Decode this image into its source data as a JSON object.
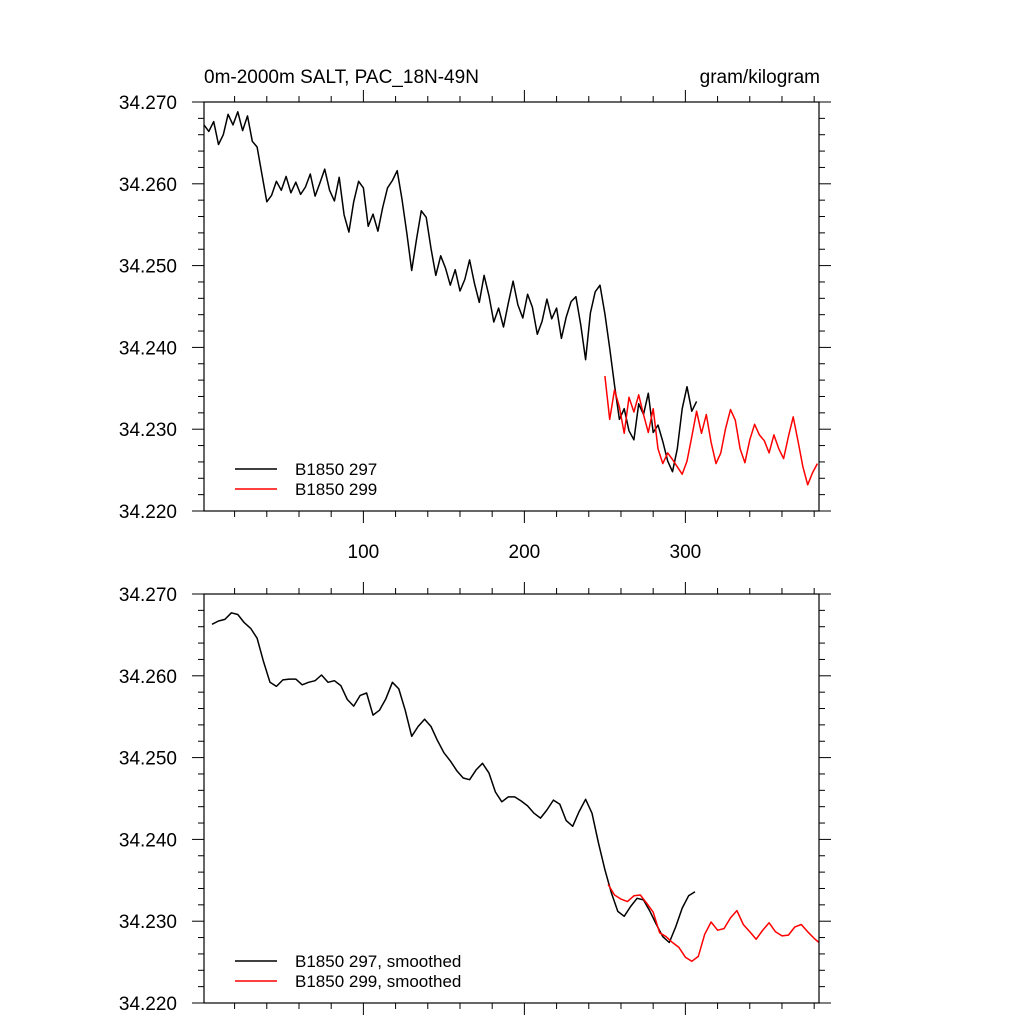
{
  "chart_data": [
    {
      "type": "line",
      "title": "0m-2000m SALT, PAC_18N-49N",
      "units_label": "gram/kilogram",
      "xlim": [
        1,
        383
      ],
      "ylim": [
        34.22,
        34.27
      ],
      "x_tick_labels": [
        "100",
        "200",
        "300"
      ],
      "x_ticks": [
        100,
        200,
        300
      ],
      "y_ticks": [
        34.22,
        34.23,
        34.24,
        34.25,
        34.26,
        34.27
      ],
      "y_tick_labels": [
        "34.220",
        "34.230",
        "34.240",
        "34.250",
        "34.260",
        "34.270"
      ],
      "legend": "bottom-left",
      "series": [
        {
          "name": "B1850 297",
          "color": "#000000",
          "x": [
            1,
            4,
            7,
            10,
            13,
            16,
            19,
            22,
            25,
            28,
            31,
            34,
            37,
            40,
            43,
            46,
            49,
            52,
            55,
            58,
            61,
            64,
            67,
            70,
            73,
            76,
            79,
            82,
            85,
            88,
            91,
            94,
            97,
            100,
            103,
            106,
            109,
            112,
            115,
            118,
            121,
            124,
            127,
            130,
            133,
            136,
            139,
            142,
            145,
            148,
            151,
            154,
            157,
            160,
            163,
            166,
            169,
            172,
            175,
            178,
            181,
            184,
            187,
            190,
            193,
            196,
            199,
            202,
            205,
            208,
            211,
            214,
            217,
            220,
            223,
            226,
            229,
            232,
            235,
            238,
            241,
            244,
            247,
            250,
            253,
            256,
            259,
            262,
            265,
            268,
            271,
            274,
            277,
            280,
            283,
            286,
            289,
            292,
            295,
            298,
            301,
            304,
            307
          ],
          "values": [
            34.2672,
            34.2664,
            34.2676,
            34.2648,
            34.266,
            34.2685,
            34.2672,
            34.2688,
            34.2665,
            34.2683,
            34.2652,
            34.2645,
            34.2611,
            34.2578,
            34.2586,
            34.2603,
            34.2592,
            34.2609,
            34.2589,
            34.2602,
            34.2587,
            34.2596,
            34.2612,
            34.2585,
            34.2601,
            34.2618,
            34.2592,
            34.2579,
            34.2608,
            34.2562,
            34.2541,
            34.2578,
            34.2603,
            34.2595,
            34.2548,
            34.2563,
            34.2542,
            34.2571,
            34.2595,
            34.2604,
            34.2616,
            34.2581,
            34.2539,
            34.2494,
            34.2532,
            34.2567,
            34.2559,
            34.2521,
            34.2488,
            34.2512,
            34.2497,
            34.2476,
            34.2495,
            34.2469,
            34.2483,
            34.2507,
            34.2478,
            34.2455,
            34.2488,
            34.2463,
            34.2431,
            34.2448,
            34.2425,
            34.2454,
            34.2481,
            34.2452,
            34.2436,
            34.2465,
            34.2449,
            34.2416,
            34.2432,
            34.2459,
            34.2435,
            34.2448,
            34.2411,
            34.2437,
            34.2456,
            34.2462,
            34.2428,
            34.2385,
            34.2442,
            34.2468,
            34.2476,
            34.2441,
            34.2399,
            34.2354,
            34.2312,
            34.2325,
            34.2298,
            34.2287,
            34.2331,
            34.2318,
            34.2344,
            34.2296,
            34.2305,
            34.2285,
            34.2261,
            34.2248,
            34.2276,
            34.2325,
            34.2352,
            34.2322,
            34.2334
          ]
        },
        {
          "name": "B1850 299",
          "color": "#ff0000",
          "x": [
            250,
            253,
            256,
            259,
            262,
            265,
            268,
            271,
            274,
            277,
            280,
            283,
            286,
            289,
            292,
            295,
            298,
            301,
            304,
            307,
            310,
            313,
            316,
            319,
            322,
            325,
            328,
            331,
            334,
            337,
            340,
            343,
            346,
            349,
            352,
            355,
            358,
            361,
            364,
            367,
            370,
            373,
            376,
            379,
            382
          ],
          "values": [
            34.2365,
            34.2312,
            34.2348,
            34.2327,
            34.2295,
            34.2339,
            34.2321,
            34.2342,
            34.2318,
            34.2296,
            34.2325,
            34.2276,
            34.2258,
            34.2271,
            34.2263,
            34.2254,
            34.2245,
            34.2261,
            34.2291,
            34.2322,
            34.2295,
            34.2318,
            34.2284,
            34.2258,
            34.2271,
            34.2301,
            34.2324,
            34.2311,
            34.2276,
            34.2259,
            34.2287,
            34.2306,
            34.2293,
            34.2286,
            34.2271,
            34.2293,
            34.2276,
            34.2264,
            34.2291,
            34.2315,
            34.2285,
            34.2254,
            34.2232,
            34.2247,
            34.2258
          ]
        }
      ]
    },
    {
      "type": "line",
      "xlim": [
        1,
        383
      ],
      "ylim": [
        34.22,
        34.27
      ],
      "x_ticks": [
        100,
        200,
        300
      ],
      "y_ticks": [
        34.22,
        34.23,
        34.24,
        34.25,
        34.26,
        34.27
      ],
      "y_tick_labels": [
        "34.220",
        "34.230",
        "34.240",
        "34.250",
        "34.260",
        "34.270"
      ],
      "legend": "bottom-left",
      "series": [
        {
          "name": "B1850 297, smoothed",
          "color": "#000000",
          "x": [
            6,
            10,
            14,
            18,
            22,
            26,
            30,
            34,
            38,
            42,
            46,
            50,
            54,
            58,
            62,
            66,
            70,
            74,
            78,
            82,
            86,
            90,
            94,
            98,
            102,
            106,
            110,
            114,
            118,
            122,
            126,
            130,
            134,
            138,
            142,
            146,
            150,
            154,
            158,
            162,
            166,
            170,
            174,
            178,
            182,
            186,
            190,
            194,
            198,
            202,
            206,
            210,
            214,
            218,
            222,
            226,
            230,
            234,
            238,
            242,
            246,
            250,
            254,
            258,
            262,
            266,
            270,
            274,
            278,
            282,
            286,
            290,
            294,
            298,
            302,
            306
          ],
          "values": [
            34.2663,
            34.2667,
            34.2669,
            34.2677,
            34.2675,
            34.2665,
            34.2658,
            34.2646,
            34.2617,
            34.2592,
            34.2587,
            34.2595,
            34.2596,
            34.2596,
            34.2589,
            34.2592,
            34.2594,
            34.2601,
            34.2592,
            34.2594,
            34.2588,
            34.2571,
            34.2563,
            34.2576,
            34.2579,
            34.2552,
            34.2558,
            34.2572,
            34.2592,
            34.2584,
            34.2558,
            34.2526,
            34.2538,
            34.2547,
            34.2538,
            34.2521,
            34.2506,
            34.2496,
            34.2484,
            34.2475,
            34.2473,
            34.2485,
            34.2493,
            34.2481,
            34.2458,
            34.2446,
            34.2452,
            34.2452,
            34.2447,
            34.2441,
            34.2432,
            34.2426,
            34.2436,
            34.2448,
            34.2443,
            34.2423,
            34.2416,
            34.2434,
            34.2449,
            34.2432,
            34.2396,
            34.2363,
            34.2335,
            34.2312,
            34.2306,
            34.2318,
            34.2328,
            34.2326,
            34.2312,
            34.2296,
            34.2281,
            34.2274,
            34.2293,
            34.2316,
            34.2331,
            34.2336
          ]
        },
        {
          "name": "B1850 299, smoothed",
          "color": "#ff0000",
          "x": [
            252,
            256,
            260,
            264,
            268,
            272,
            276,
            280,
            284,
            288,
            292,
            296,
            300,
            304,
            308,
            312,
            316,
            320,
            324,
            328,
            332,
            336,
            340,
            344,
            348,
            352,
            356,
            360,
            364,
            368,
            372,
            376,
            380,
            383
          ],
          "values": [
            34.2345,
            34.2332,
            34.2327,
            34.2324,
            34.2331,
            34.2332,
            34.2322,
            34.2311,
            34.2286,
            34.2281,
            34.2274,
            34.2268,
            34.2256,
            34.2251,
            34.2257,
            34.2284,
            34.2299,
            34.2289,
            34.2291,
            34.2304,
            34.2313,
            34.2296,
            34.2287,
            34.2278,
            34.2289,
            34.2298,
            34.2287,
            34.2282,
            34.2283,
            34.2293,
            34.2296,
            34.2287,
            34.2279,
            34.2274
          ]
        }
      ]
    }
  ]
}
